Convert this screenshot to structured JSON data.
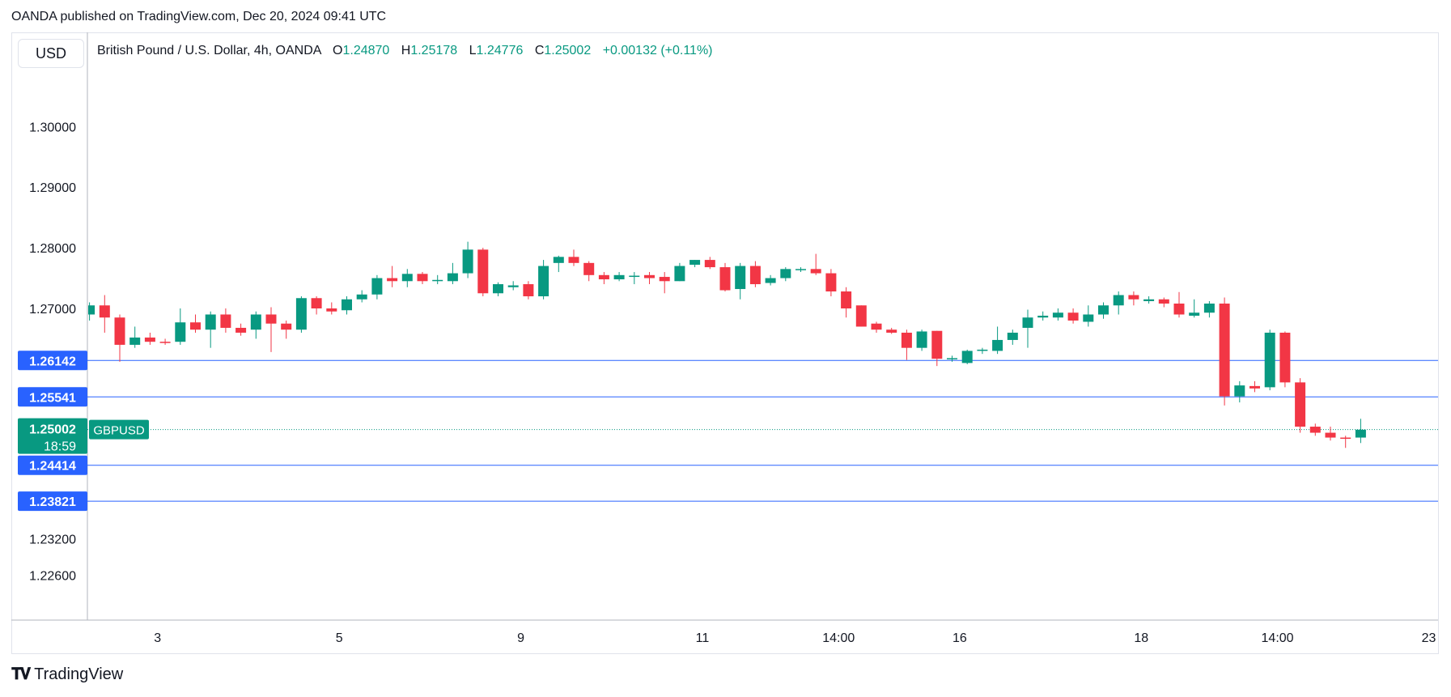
{
  "header": {
    "published": "OANDA published on TradingView.com, Dec 20, 2024 09:41 UTC"
  },
  "currency_label": "USD",
  "legend": {
    "symbol": "British Pound / U.S. Dollar, 4h, OANDA",
    "o_key": "O",
    "o_val": "1.24870",
    "h_key": "H",
    "h_val": "1.25178",
    "l_key": "L",
    "l_val": "1.24776",
    "c_key": "C",
    "c_val": "1.25002",
    "change": "+0.00132 (+0.11%)"
  },
  "footer": {
    "brand": "TradingView"
  },
  "colors": {
    "up": "#089981",
    "down": "#f23645",
    "level_line": "#2962ff",
    "current_price": "#089981"
  },
  "chart_data": {
    "type": "candlestick",
    "symbol": "GBPUSD",
    "interval": "4h",
    "y_ticks": [
      1.3,
      1.29,
      1.28,
      1.27,
      1.232,
      1.226
    ],
    "y_tick_labels": [
      "1.30000",
      "1.29000",
      "1.28000",
      "1.27000",
      "1.23200",
      "1.22600"
    ],
    "x_tick_labels": [
      "3",
      "5",
      "9",
      "11",
      "14:00",
      "16",
      "18",
      "14:00",
      "23"
    ],
    "x_tick_index": [
      4.5,
      16.5,
      28.5,
      40.5,
      49.5,
      57.5,
      69.5,
      78.5,
      88.5
    ],
    "horizontal_levels": [
      {
        "value": 1.26142,
        "label": "1.26142"
      },
      {
        "value": 1.25541,
        "label": "1.25541"
      },
      {
        "value": 1.24414,
        "label": "1.24414"
      },
      {
        "value": 1.23821,
        "label": "1.23821"
      }
    ],
    "current_price": {
      "value": 1.25002,
      "label": "1.25002",
      "countdown": "18:59",
      "tag": "GBPUSD"
    },
    "candles": [
      [
        1.269,
        1.271,
        1.268,
        1.2705
      ],
      [
        1.2705,
        1.2722,
        1.266,
        1.2685
      ],
      [
        1.2685,
        1.269,
        1.2612,
        1.264
      ],
      [
        1.264,
        1.267,
        1.2635,
        1.2652
      ],
      [
        1.2652,
        1.266,
        1.264,
        1.2645
      ],
      [
        1.2645,
        1.265,
        1.264,
        1.2643
      ],
      [
        1.2645,
        1.27,
        1.264,
        1.2677
      ],
      [
        1.2677,
        1.269,
        1.266,
        1.2665
      ],
      [
        1.2665,
        1.2695,
        1.2635,
        1.269
      ],
      [
        1.269,
        1.27,
        1.266,
        1.2668
      ],
      [
        1.2668,
        1.2675,
        1.2655,
        1.266
      ],
      [
        1.2665,
        1.2695,
        1.265,
        1.269
      ],
      [
        1.269,
        1.2702,
        1.2628,
        1.2675
      ],
      [
        1.2675,
        1.268,
        1.265,
        1.2665
      ],
      [
        1.2665,
        1.272,
        1.266,
        1.2717
      ],
      [
        1.2717,
        1.272,
        1.269,
        1.27
      ],
      [
        1.27,
        1.271,
        1.269,
        1.2695
      ],
      [
        1.2697,
        1.272,
        1.269,
        1.2715
      ],
      [
        1.2715,
        1.273,
        1.271,
        1.2723
      ],
      [
        1.2723,
        1.2755,
        1.2715,
        1.275
      ],
      [
        1.275,
        1.277,
        1.2735,
        1.2745
      ],
      [
        1.2745,
        1.2765,
        1.2735,
        1.2757
      ],
      [
        1.2757,
        1.276,
        1.274,
        1.2745
      ],
      [
        1.2745,
        1.2755,
        1.274,
        1.2747
      ],
      [
        1.2745,
        1.2775,
        1.274,
        1.2758
      ],
      [
        1.2758,
        1.281,
        1.275,
        1.2797
      ],
      [
        1.2797,
        1.28,
        1.272,
        1.2725
      ],
      [
        1.2725,
        1.2743,
        1.272,
        1.274
      ],
      [
        1.2735,
        1.2745,
        1.273,
        1.2738
      ],
      [
        1.274,
        1.2745,
        1.2715,
        1.272
      ],
      [
        1.272,
        1.278,
        1.2715,
        1.277
      ],
      [
        1.2775,
        1.2787,
        1.276,
        1.2785
      ],
      [
        1.2785,
        1.2797,
        1.277,
        1.2775
      ],
      [
        1.2775,
        1.2778,
        1.2745,
        1.2755
      ],
      [
        1.2755,
        1.276,
        1.274,
        1.2748
      ],
      [
        1.2748,
        1.276,
        1.2745,
        1.2755
      ],
      [
        1.2752,
        1.276,
        1.274,
        1.2754
      ],
      [
        1.2755,
        1.276,
        1.274,
        1.275
      ],
      [
        1.2752,
        1.276,
        1.2725,
        1.2745
      ],
      [
        1.2745,
        1.2775,
        1.2745,
        1.277
      ],
      [
        1.2772,
        1.278,
        1.2768,
        1.278
      ],
      [
        1.278,
        1.2785,
        1.2765,
        1.2768
      ],
      [
        1.2768,
        1.2775,
        1.2728,
        1.273
      ],
      [
        1.2732,
        1.2775,
        1.2715,
        1.277
      ],
      [
        1.277,
        1.2778,
        1.2735,
        1.274
      ],
      [
        1.2742,
        1.2755,
        1.2738,
        1.275
      ],
      [
        1.275,
        1.2768,
        1.2745,
        1.2765
      ],
      [
        1.2763,
        1.2768,
        1.276,
        1.2765
      ],
      [
        1.2765,
        1.279,
        1.2755,
        1.2758
      ],
      [
        1.2758,
        1.2765,
        1.272,
        1.2728
      ],
      [
        1.2728,
        1.2735,
        1.2685,
        1.27
      ],
      [
        1.2705,
        1.2705,
        1.267,
        1.267
      ],
      [
        1.2675,
        1.2678,
        1.266,
        1.2665
      ],
      [
        1.2665,
        1.2668,
        1.2658,
        1.266
      ],
      [
        1.266,
        1.2665,
        1.2615,
        1.2635
      ],
      [
        1.2635,
        1.2665,
        1.263,
        1.2662
      ],
      [
        1.2663,
        1.2663,
        1.2605,
        1.2617
      ],
      [
        1.2617,
        1.2622,
        1.2612,
        1.2618
      ],
      [
        1.261,
        1.2632,
        1.2608,
        1.263
      ],
      [
        1.263,
        1.2635,
        1.2625,
        1.2632
      ],
      [
        1.263,
        1.267,
        1.2625,
        1.2648
      ],
      [
        1.2648,
        1.2665,
        1.264,
        1.266
      ],
      [
        1.2668,
        1.2698,
        1.2635,
        1.2685
      ],
      [
        1.2685,
        1.2695,
        1.268,
        1.2688
      ],
      [
        1.2685,
        1.27,
        1.268,
        1.2693
      ],
      [
        1.2693,
        1.27,
        1.2675,
        1.268
      ],
      [
        1.2678,
        1.2705,
        1.267,
        1.269
      ],
      [
        1.269,
        1.271,
        1.2683,
        1.2705
      ],
      [
        1.2705,
        1.2728,
        1.269,
        1.2722
      ],
      [
        1.2722,
        1.2728,
        1.2705,
        1.2715
      ],
      [
        1.2712,
        1.272,
        1.2708,
        1.2715
      ],
      [
        1.2715,
        1.2718,
        1.2702,
        1.2708
      ],
      [
        1.2708,
        1.2727,
        1.2685,
        1.269
      ],
      [
        1.2688,
        1.2715,
        1.2685,
        1.2693
      ],
      [
        1.2693,
        1.2712,
        1.2685,
        1.2708
      ],
      [
        1.2708,
        1.2718,
        1.254,
        1.2555
      ],
      [
        1.2555,
        1.258,
        1.2545,
        1.2573
      ],
      [
        1.2572,
        1.258,
        1.2562,
        1.2568
      ],
      [
        1.257,
        1.2665,
        1.2565,
        1.266
      ],
      [
        1.266,
        1.2662,
        1.257,
        1.2578
      ],
      [
        1.2578,
        1.2585,
        1.2495,
        1.2505
      ],
      [
        1.2505,
        1.251,
        1.249,
        1.2495
      ],
      [
        1.2495,
        1.2505,
        1.2482,
        1.2487
      ],
      [
        1.2487,
        1.249,
        1.247,
        1.2485
      ],
      [
        1.2487,
        1.2518,
        1.2478,
        1.25
      ]
    ]
  }
}
